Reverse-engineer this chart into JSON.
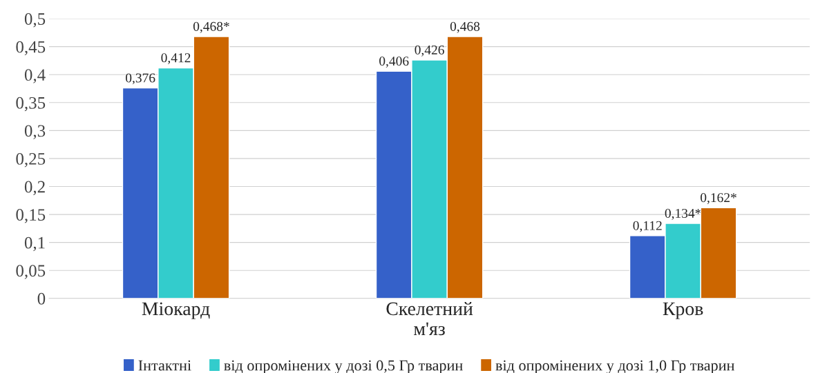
{
  "chart_data": {
    "type": "bar",
    "categories": [
      "Міокард",
      "Скелетний\nм'яз",
      "Кров"
    ],
    "series": [
      {
        "name": "Інтактні",
        "color": "#3561c9",
        "values": [
          0.376,
          0.406,
          0.112
        ],
        "value_labels": [
          "0,376",
          "0,406",
          "0,112"
        ]
      },
      {
        "name": "від опромінених у дозі 0,5 Гр тварин",
        "color": "#33cccc",
        "values": [
          0.412,
          0.426,
          0.134
        ],
        "value_labels": [
          "0,412",
          "0,426",
          "0,134*"
        ]
      },
      {
        "name": "від опромінених у дозі 1,0 Гр тварин",
        "color": "#cc6600",
        "values": [
          0.468,
          0.468,
          0.162
        ],
        "value_labels": [
          "0,468*",
          "0,468",
          "0,162*"
        ]
      }
    ],
    "ylim": [
      0,
      0.5
    ],
    "yticks": [
      0,
      {
        "value": 0.05,
        "label": "0,05"
      },
      {
        "value": 0.1,
        "label": "0,1"
      },
      {
        "value": 0.15,
        "label": "0,15"
      },
      {
        "value": 0.2,
        "label": "0,2"
      },
      {
        "value": 0.25,
        "label": "0,25"
      },
      {
        "value": 0.3,
        "label": "0,3"
      },
      {
        "value": 0.35,
        "label": "0,35"
      },
      {
        "value": 0.4,
        "label": "0,4"
      },
      {
        "value": 0.45,
        "label": "0,45"
      },
      {
        "value": 0.5,
        "label": "0,5"
      }
    ],
    "grid": "y",
    "legend": "bottom"
  }
}
